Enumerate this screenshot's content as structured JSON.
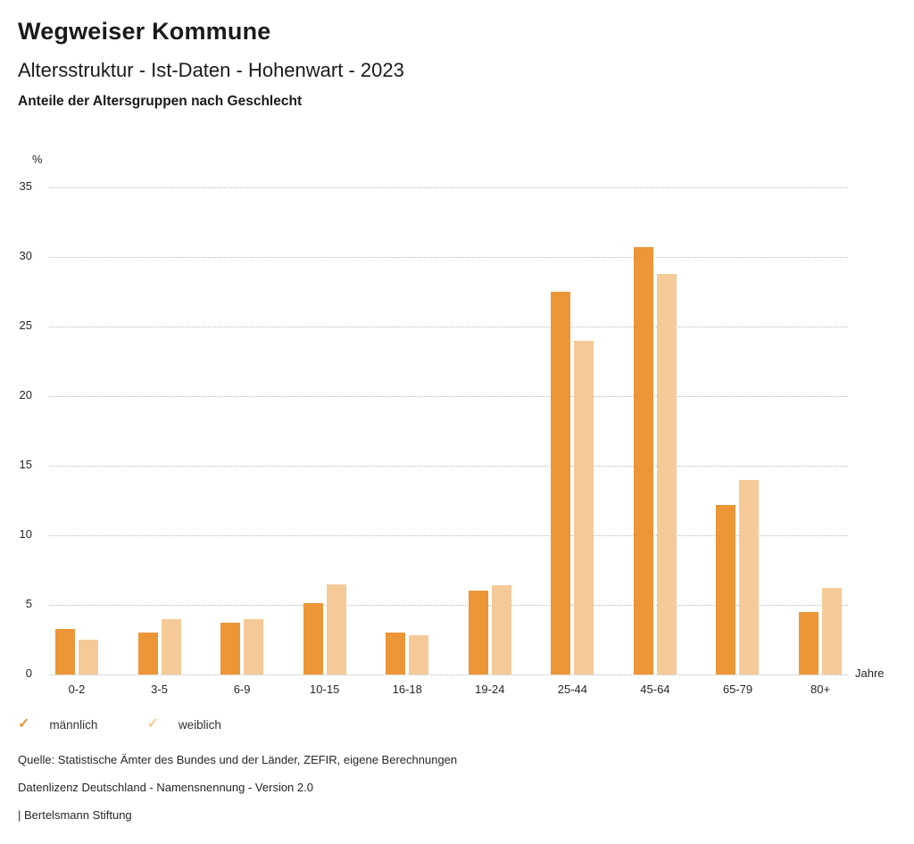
{
  "header": {
    "title": "Wegweiser Kommune",
    "subtitle": "Altersstruktur - Ist-Daten - Hohenwart - 2023",
    "chart_heading": "Anteile der Altersgruppen nach Geschlecht"
  },
  "chart_data": {
    "type": "bar",
    "title": "Anteile der Altersgruppen nach Geschlecht",
    "ylabel": "%",
    "xlabel": "Jahre",
    "ylim": [
      0,
      35
    ],
    "ytick_step": 5,
    "grid": "horizontal-dotted",
    "legend_position": "bottom-left",
    "categories": [
      "0-2",
      "3-5",
      "6-9",
      "10-15",
      "16-18",
      "19-24",
      "25-44",
      "45-64",
      "65-79",
      "80+"
    ],
    "series": [
      {
        "name": "männlich",
        "color": "#EC9637",
        "values": [
          3.3,
          3.0,
          3.7,
          5.1,
          3.0,
          6.0,
          27.5,
          30.7,
          12.2,
          4.5
        ]
      },
      {
        "name": "weiblich",
        "color": "#F5CA98",
        "values": [
          2.5,
          4.0,
          4.0,
          6.5,
          2.8,
          6.4,
          24.0,
          28.8,
          14.0,
          6.2
        ]
      }
    ]
  },
  "legend": {
    "items": [
      {
        "label": "männlich",
        "glyph": "✓",
        "color": "#EC9637",
        "icon": "check-icon"
      },
      {
        "label": "weiblich",
        "glyph": "✓",
        "color": "#F5CA98",
        "icon": "check-icon"
      }
    ]
  },
  "footer": {
    "source": "Quelle: Statistische Ämter des Bundes und der Länder, ZEFIR, eigene Berechnungen",
    "license": "Datenlizenz Deutschland - Namensnennung - Version 2.0",
    "attribution": "| Bertelsmann Stiftung"
  },
  "colors": {
    "male": "#EC9637",
    "female": "#F5CA98",
    "gridline": "#B9B9B9",
    "text_primary": "#1A1A1A",
    "text_secondary": "#262626"
  }
}
